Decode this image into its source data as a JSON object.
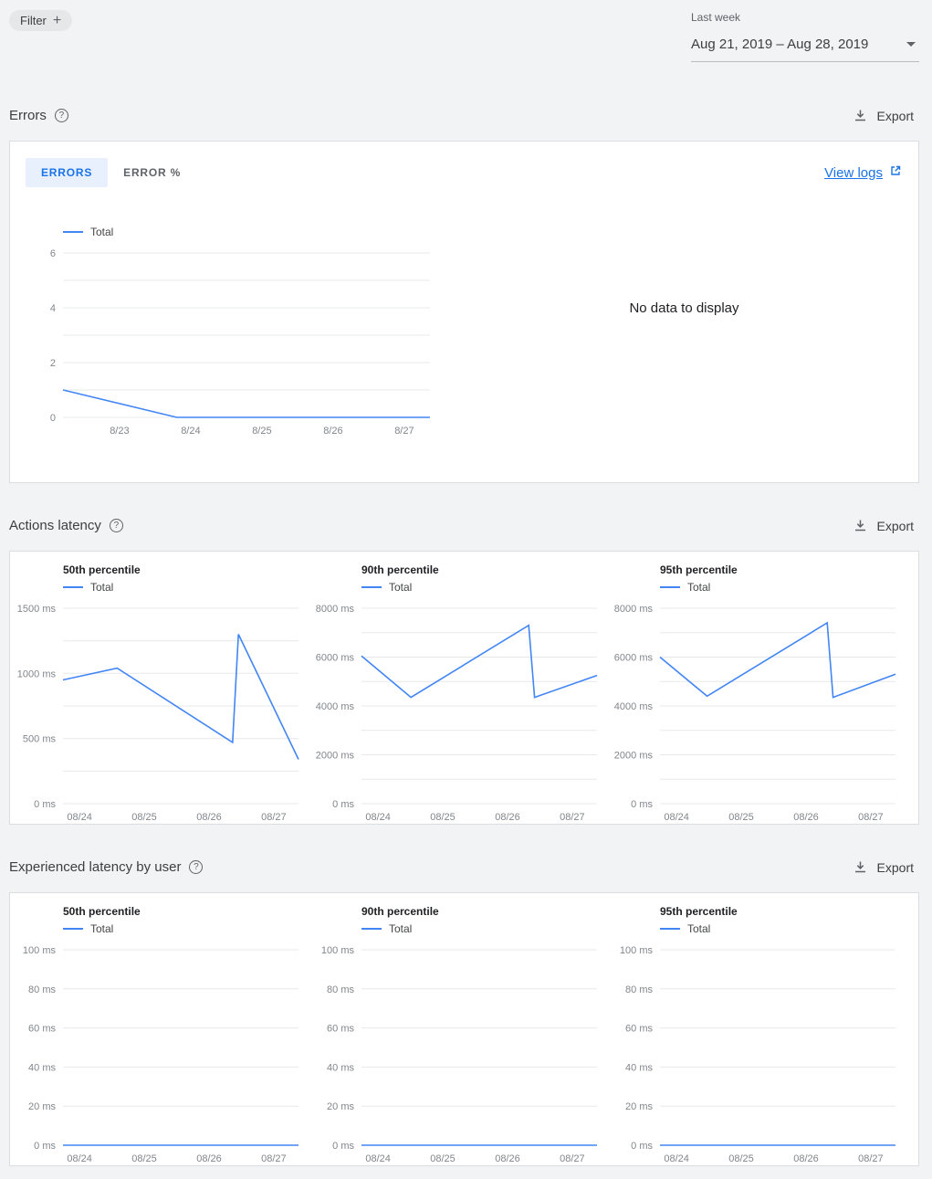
{
  "colors": {
    "line": "#4285f4",
    "accent": "#1a73e8",
    "tab_active_bg": "#e8f0fe",
    "grid": "#e7e8ea"
  },
  "header": {
    "filter_label": "Filter",
    "range_label": "Last week",
    "range_value": "Aug 21, 2019 – Aug 28, 2019"
  },
  "sections": {
    "errors": {
      "title": "Errors",
      "export_label": "Export",
      "tabs": [
        {
          "label": "ERRORS",
          "active": true
        },
        {
          "label": "ERROR %",
          "active": false
        }
      ],
      "view_logs_label": "View logs",
      "no_data_text": "No data to display"
    },
    "actions_latency": {
      "title": "Actions latency",
      "export_label": "Export"
    },
    "experienced_latency": {
      "title": "Experienced latency by user",
      "export_label": "Export"
    }
  },
  "chart_data": [
    {
      "id": "errors",
      "type": "line",
      "title": "Errors",
      "ylabel": "errors",
      "ylim": [
        0,
        6
      ],
      "minor": 1,
      "yticks": [
        {
          "v": 0,
          "label": "0"
        },
        {
          "v": 2,
          "label": "2"
        },
        {
          "v": 4,
          "label": "4"
        },
        {
          "v": 6,
          "label": "6"
        }
      ],
      "xticks": [
        {
          "pos": 0.154,
          "label": "8/23"
        },
        {
          "pos": 0.348,
          "label": "8/24"
        },
        {
          "pos": 0.542,
          "label": "8/25"
        },
        {
          "pos": 0.736,
          "label": "8/26"
        },
        {
          "pos": 0.93,
          "label": "8/27"
        }
      ],
      "series": [
        {
          "name": "Total",
          "points": [
            [
              0,
              1
            ],
            [
              0.31,
              0
            ],
            [
              1,
              0
            ]
          ]
        }
      ]
    },
    {
      "id": "actions-latency-p50",
      "type": "line",
      "title": "50th percentile",
      "ylabel": "ms",
      "ylim": [
        0,
        1500
      ],
      "minor": 250,
      "yticks": [
        {
          "v": 0,
          "label": "0 ms"
        },
        {
          "v": 500,
          "label": "500 ms"
        },
        {
          "v": 1000,
          "label": "1000 ms"
        },
        {
          "v": 1500,
          "label": "1500 ms"
        }
      ],
      "xticks": [
        {
          "pos": 0.07,
          "label": "08/24"
        },
        {
          "pos": 0.345,
          "label": "08/25"
        },
        {
          "pos": 0.62,
          "label": "08/26"
        },
        {
          "pos": 0.895,
          "label": "08/27"
        }
      ],
      "series": [
        {
          "name": "Total",
          "points": [
            [
              0,
              950
            ],
            [
              0.23,
              1040
            ],
            [
              0.72,
              470
            ],
            [
              0.745,
              1300
            ],
            [
              1,
              340
            ]
          ]
        }
      ]
    },
    {
      "id": "actions-latency-p90",
      "type": "line",
      "title": "90th percentile",
      "ylabel": "ms",
      "ylim": [
        0,
        8000
      ],
      "minor": 1000,
      "yticks": [
        {
          "v": 0,
          "label": "0 ms"
        },
        {
          "v": 2000,
          "label": "2000 ms"
        },
        {
          "v": 4000,
          "label": "4000 ms"
        },
        {
          "v": 6000,
          "label": "6000 ms"
        },
        {
          "v": 8000,
          "label": "8000 ms"
        }
      ],
      "xticks": [
        {
          "pos": 0.07,
          "label": "08/24"
        },
        {
          "pos": 0.345,
          "label": "08/25"
        },
        {
          "pos": 0.62,
          "label": "08/26"
        },
        {
          "pos": 0.895,
          "label": "08/27"
        }
      ],
      "series": [
        {
          "name": "Total",
          "points": [
            [
              0,
              6050
            ],
            [
              0.21,
              4350
            ],
            [
              0.71,
              7300
            ],
            [
              0.735,
              4350
            ],
            [
              1,
              5250
            ]
          ]
        }
      ]
    },
    {
      "id": "actions-latency-p95",
      "type": "line",
      "title": "95th percentile",
      "ylabel": "ms",
      "ylim": [
        0,
        8000
      ],
      "minor": 1000,
      "yticks": [
        {
          "v": 0,
          "label": "0 ms"
        },
        {
          "v": 2000,
          "label": "2000 ms"
        },
        {
          "v": 4000,
          "label": "4000 ms"
        },
        {
          "v": 6000,
          "label": "6000 ms"
        },
        {
          "v": 8000,
          "label": "8000 ms"
        }
      ],
      "xticks": [
        {
          "pos": 0.07,
          "label": "08/24"
        },
        {
          "pos": 0.345,
          "label": "08/25"
        },
        {
          "pos": 0.62,
          "label": "08/26"
        },
        {
          "pos": 0.895,
          "label": "08/27"
        }
      ],
      "series": [
        {
          "name": "Total",
          "points": [
            [
              0,
              6000
            ],
            [
              0.2,
              4400
            ],
            [
              0.71,
              7400
            ],
            [
              0.735,
              4350
            ],
            [
              1,
              5300
            ]
          ]
        }
      ]
    },
    {
      "id": "user-latency-p50",
      "type": "line",
      "title": "50th percentile",
      "ylabel": "ms",
      "ylim": [
        0,
        100
      ],
      "minor": 20,
      "yticks": [
        {
          "v": 0,
          "label": "0 ms"
        },
        {
          "v": 20,
          "label": "20 ms"
        },
        {
          "v": 40,
          "label": "40 ms"
        },
        {
          "v": 60,
          "label": "60 ms"
        },
        {
          "v": 80,
          "label": "80 ms"
        },
        {
          "v": 100,
          "label": "100 ms"
        }
      ],
      "xticks": [
        {
          "pos": 0.07,
          "label": "08/24"
        },
        {
          "pos": 0.345,
          "label": "08/25"
        },
        {
          "pos": 0.62,
          "label": "08/26"
        },
        {
          "pos": 0.895,
          "label": "08/27"
        }
      ],
      "series": [
        {
          "name": "Total",
          "points": [
            [
              0,
              0
            ],
            [
              1,
              0
            ]
          ]
        }
      ]
    },
    {
      "id": "user-latency-p90",
      "type": "line",
      "title": "90th percentile",
      "ylabel": "ms",
      "ylim": [
        0,
        100
      ],
      "minor": 20,
      "yticks": [
        {
          "v": 0,
          "label": "0 ms"
        },
        {
          "v": 20,
          "label": "20 ms"
        },
        {
          "v": 40,
          "label": "40 ms"
        },
        {
          "v": 60,
          "label": "60 ms"
        },
        {
          "v": 80,
          "label": "80 ms"
        },
        {
          "v": 100,
          "label": "100 ms"
        }
      ],
      "xticks": [
        {
          "pos": 0.07,
          "label": "08/24"
        },
        {
          "pos": 0.345,
          "label": "08/25"
        },
        {
          "pos": 0.62,
          "label": "08/26"
        },
        {
          "pos": 0.895,
          "label": "08/27"
        }
      ],
      "series": [
        {
          "name": "Total",
          "points": [
            [
              0,
              0
            ],
            [
              1,
              0
            ]
          ]
        }
      ]
    },
    {
      "id": "user-latency-p95",
      "type": "line",
      "title": "95th percentile",
      "ylabel": "ms",
      "ylim": [
        0,
        100
      ],
      "minor": 20,
      "yticks": [
        {
          "v": 0,
          "label": "0 ms"
        },
        {
          "v": 20,
          "label": "20 ms"
        },
        {
          "v": 40,
          "label": "40 ms"
        },
        {
          "v": 60,
          "label": "60 ms"
        },
        {
          "v": 80,
          "label": "80 ms"
        },
        {
          "v": 100,
          "label": "100 ms"
        }
      ],
      "xticks": [
        {
          "pos": 0.07,
          "label": "08/24"
        },
        {
          "pos": 0.345,
          "label": "08/25"
        },
        {
          "pos": 0.62,
          "label": "08/26"
        },
        {
          "pos": 0.895,
          "label": "08/27"
        }
      ],
      "series": [
        {
          "name": "Total",
          "points": [
            [
              0,
              0
            ],
            [
              1,
              0
            ]
          ]
        }
      ]
    }
  ]
}
